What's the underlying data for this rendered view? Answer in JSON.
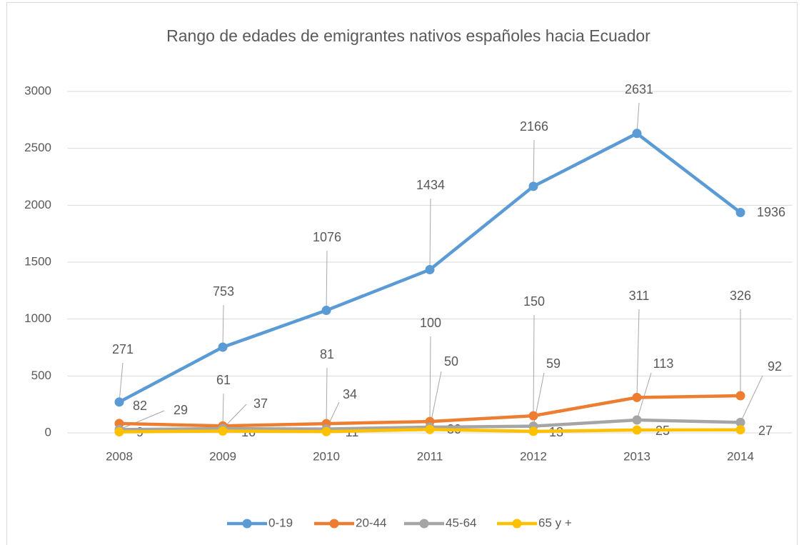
{
  "chart_data": {
    "type": "line",
    "title": "Rango de edades de emigrantes nativos españoles hacia Ecuador",
    "categories": [
      "2008",
      "2009",
      "2010",
      "2011",
      "2012",
      "2013",
      "2014"
    ],
    "series": [
      {
        "name": "0-19",
        "color": "#5b9bd5",
        "values": [
          271,
          753,
          1076,
          1434,
          2166,
          2631,
          1936
        ]
      },
      {
        "name": "20-44",
        "color": "#ed7d31",
        "values": [
          82,
          61,
          81,
          100,
          150,
          311,
          326
        ]
      },
      {
        "name": "45-64",
        "color": "#a5a5a5",
        "values": [
          29,
          37,
          34,
          50,
          59,
          113,
          92
        ]
      },
      {
        "name": "65 y +",
        "color": "#ffc000",
        "values": [
          9,
          16,
          11,
          30,
          13,
          25,
          27
        ]
      }
    ],
    "ylim": [
      0,
      3000
    ],
    "yticks": [
      0,
      500,
      1000,
      1500,
      2000,
      2500,
      3000
    ],
    "grid": true,
    "legend": "bottom"
  }
}
